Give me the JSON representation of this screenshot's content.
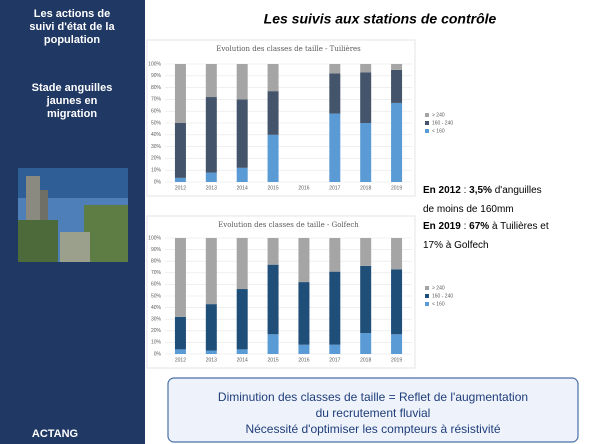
{
  "title": "Les suivis aux stations de contrôle",
  "sidebar": {
    "block1": [
      "Les actions de",
      "suivi d'état de la",
      "population"
    ],
    "block2": [
      "Stade anguilles",
      "jaunes en",
      "migration"
    ],
    "footer": "ACTANG"
  },
  "notes": [
    [
      {
        "text": "En 2012",
        "bold": true
      },
      {
        "text": " : "
      },
      {
        "text": "3,5%",
        "bold": true
      },
      {
        "text": " d'anguilles"
      }
    ],
    [
      {
        "text": "de moins de 160mm"
      }
    ],
    [
      {
        "text": "En 2019",
        "bold": true
      },
      {
        "text": " : "
      },
      {
        "text": "67%",
        "bold": true
      },
      {
        "text": " à Tuilières et"
      }
    ],
    [
      {
        "text": "17% à Golfech"
      }
    ]
  ],
  "callout": [
    "Diminution des classes de taille = Reflet de l'augmentation",
    "du recrutement fluvial",
    "Nécessité d'optimiser les compteurs à résistivité"
  ],
  "chart_data": [
    {
      "type": "stacked-bar",
      "title": "Evolution des classes de taille - Tuilières",
      "categories": [
        "2012",
        "2013",
        "2014",
        "2015",
        "2016",
        "2017",
        "2018",
        "2019"
      ],
      "series": [
        {
          "name": "< 160",
          "color": "#5b9bd5",
          "values": [
            3.5,
            8,
            12,
            40,
            null,
            58,
            50,
            67
          ]
        },
        {
          "name": "160 - 240",
          "color": "#44546a",
          "values": [
            46.5,
            64,
            58,
            37,
            null,
            34,
            43,
            28
          ]
        },
        {
          "name": "> 240",
          "color": "#a5a5a5",
          "values": [
            50,
            28,
            30,
            23,
            null,
            8,
            7,
            5
          ]
        }
      ],
      "ylim": [
        0,
        100
      ],
      "yticks": [
        {
          "value": 0,
          "label": "0%"
        },
        {
          "value": 10,
          "label": "10%"
        },
        {
          "value": 20,
          "label": "20%"
        },
        {
          "value": 30,
          "label": "30%"
        },
        {
          "value": 40,
          "label": "40%"
        },
        {
          "value": 50,
          "label": "50%"
        },
        {
          "value": 60,
          "label": "60%"
        },
        {
          "value": 70,
          "label": "70%"
        },
        {
          "value": 80,
          "label": "80%"
        },
        {
          "value": 90,
          "label": "90%"
        },
        {
          "value": 100,
          "label": "100%"
        }
      ],
      "grid": true
    },
    {
      "type": "stacked-bar",
      "title": "Evolution des classes de taille - Golfech",
      "categories": [
        "2012",
        "2013",
        "2014",
        "2015",
        "2016",
        "2017",
        "2018",
        "2019"
      ],
      "series": [
        {
          "name": "< 160",
          "color": "#5b9bd5",
          "values": [
            4,
            3,
            4,
            17,
            8,
            8,
            18,
            17
          ]
        },
        {
          "name": "160 - 240",
          "color": "#1f4e79",
          "values": [
            28,
            40,
            52,
            60,
            54,
            63,
            58,
            56
          ]
        },
        {
          "name": "> 240",
          "color": "#a5a5a5",
          "values": [
            68,
            57,
            44,
            23,
            38,
            29,
            24,
            27
          ]
        }
      ],
      "ylim": [
        0,
        100
      ],
      "yticks": [
        {
          "value": 0,
          "label": "0%"
        },
        {
          "value": 10,
          "label": "10%"
        },
        {
          "value": 20,
          "label": "20%"
        },
        {
          "value": 30,
          "label": "30%"
        },
        {
          "value": 40,
          "label": "40%"
        },
        {
          "value": 50,
          "label": "50%"
        },
        {
          "value": 60,
          "label": "60%"
        },
        {
          "value": 70,
          "label": "70%"
        },
        {
          "value": 80,
          "label": "80%"
        },
        {
          "value": 90,
          "label": "90%"
        },
        {
          "value": 100,
          "label": "100%"
        }
      ],
      "grid": true
    }
  ]
}
